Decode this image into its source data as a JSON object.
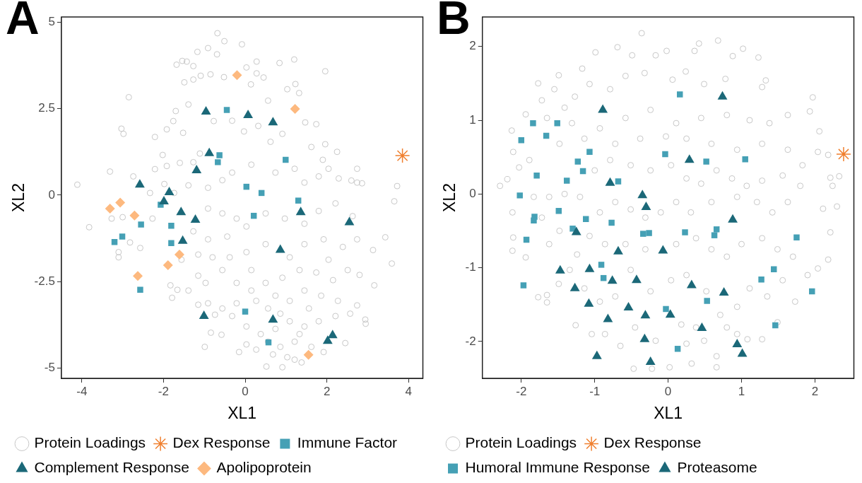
{
  "chart_data": [
    {
      "type": "scatter",
      "title": "A",
      "xlabel": "XL1",
      "ylabel": "XL2",
      "xlim": [
        -4.5,
        4.35
      ],
      "ylim": [
        -5.3,
        5.15
      ],
      "xticks": [
        -4,
        -2,
        0,
        2,
        4
      ],
      "yticks": [
        -5,
        -2.5,
        0,
        2.5,
        5
      ],
      "grid": false,
      "legend": "bottom",
      "series": [
        {
          "name": "Protein Loadings",
          "color": "#c8c8c8",
          "marker": "circle",
          "x": [
            -4.11,
            -3.82,
            -2.85,
            -3.03,
            -2.98,
            -3.31,
            -2.74,
            -0.68,
            -0.51,
            -0.08,
            1.96,
            1.2,
            3.72,
            3.65,
            3.59,
            3.43,
            3.16,
            2.95,
            2.94,
            2.74,
            3.13,
            2.74,
            2.86,
            2.29,
            2.74,
            2.25,
            1.96,
            2.6,
            0.52,
            -0.99,
            -0.84,
            -0.58,
            -0.15,
            1.38,
            2.45,
            -1.17,
            -0.91,
            -0.69,
            -1.54,
            -1.68,
            -1.43,
            -1.27,
            -1.49,
            -1.27,
            -1.09,
            -0.85,
            -0.52,
            0.03,
            0.28,
            0.84,
            1.03,
            1.23,
            1.32,
            0.56,
            0.28,
            0.45,
            0.14,
            -1.7,
            -1.76,
            -1.39,
            -1.92,
            -2.21,
            -1.52,
            -2.02,
            -2.21,
            -1.92,
            -1.6,
            -1.27,
            -1.11,
            -0.77,
            -0.32,
            -0.03,
            0.32,
            0.62,
            0.91,
            1.47,
            1.74,
            1.62,
            1.9,
            2.04,
            1.8,
            1.45,
            1.21,
            0.74,
            0.15,
            -0.32,
            -0.56,
            -0.91,
            -1.39,
            -1.74,
            -2.33,
            -1.98,
            -0.56,
            -0.21,
            -0.91,
            -1.27,
            -0.91,
            -0.44,
            0.03,
            0.5,
            0.97,
            1.45,
            1.8,
            2.21,
            2.63,
            2.74,
            2.39,
            1.92,
            1.45,
            1.09,
            0.5,
            0.03,
            -0.38,
            -0.8,
            -1.15,
            -1.56,
            -1.39,
            -0.97,
            -0.56,
            -0.21,
            0.15,
            0.5,
            0.91,
            1.33,
            1.74,
            2.15,
            2.51,
            2.8,
            2.27,
            1.86,
            1.45,
            1.09,
            0.74,
            0.27,
            -0.21,
            -0.56,
            -0.91,
            -1.15,
            -0.74,
            -0.32,
            0.03,
            0.38,
            0.74,
            1.09,
            1.45,
            1.8,
            2.21,
            2.57,
            0.86,
            1.21,
            1.03,
            0.68,
            0.27,
            0.03,
            1.62,
            1.92,
            0.91,
            1.21,
            0.56,
            1.33,
            0.86,
            1.56,
            0.56,
            0.15,
            2.04,
            -2.57,
            -3.1,
            -2.82,
            -3.1,
            -3.27,
            -3.0,
            -2.27,
            -1.79,
            -1.66,
            -1.83,
            -1.15
          ],
          "values": [
            0.3,
            -0.93,
            2.83,
            1.92,
            1.77,
            0.68,
            0.54,
            4.68,
            4.45,
            4.36,
            3.58,
            3.92,
            0.26,
            -0.18,
            -1.98,
            -1.22,
            -2.61,
            -3.72,
            -3.6,
            -3.19,
            -1.59,
            0.36,
            0.34,
            0.48,
            0.76,
            1.25,
            1.47,
            0.42,
            -4.96,
            -4.39,
            -3.98,
            -4.04,
            -4.54,
            -4.84,
            -4.28,
            4.14,
            4.25,
            4.07,
            3.88,
            3.77,
            3.86,
            3.73,
            3.26,
            3.34,
            3.45,
            3.49,
            3.41,
            3.69,
            3.86,
            3.82,
            3.06,
            3.21,
            2.95,
            2.73,
            3.52,
            3.4,
            3.2,
            2.43,
            2.14,
            2.62,
            1.9,
            1.68,
            1.8,
            1.16,
            0.75,
            0.84,
            0.93,
            0.95,
            1.2,
            2.14,
            2.15,
            1.84,
            2.0,
            1.54,
            1.77,
            2.1,
            2.05,
            1.39,
            1.02,
            0.76,
            0.54,
            0.36,
            0.76,
            0.65,
            0.88,
            0.65,
            0.43,
            0.21,
            0.28,
            0.06,
            0.06,
            0.32,
            -0.53,
            -0.68,
            -0.39,
            -1.05,
            -1.28,
            -1.2,
            -0.91,
            -0.53,
            -0.68,
            -0.83,
            -0.46,
            -0.24,
            -0.61,
            -1.28,
            -1.5,
            -1.28,
            -1.42,
            -1.8,
            -1.42,
            -1.65,
            -1.8,
            -1.8,
            -1.72,
            -1.87,
            -2.76,
            -2.54,
            -2.17,
            -2.54,
            -2.17,
            -2.54,
            -2.39,
            -2.17,
            -2.24,
            -2.46,
            -2.17,
            -2.31,
            -3.06,
            -2.91,
            -2.76,
            -3.06,
            -2.91,
            -3.06,
            -3.13,
            -3.28,
            -3.13,
            -3.17,
            -3.46,
            -3.5,
            -3.8,
            -4.02,
            -3.87,
            -3.65,
            -3.8,
            -3.65,
            -3.5,
            -3.43,
            -4.39,
            -4.24,
            -4.69,
            -4.61,
            -4.47,
            -4.32,
            -4.39,
            -4.54,
            -4.98,
            -4.76,
            -4.24,
            -4.02,
            -3.43,
            -3.28,
            -3.28,
            -2.76,
            -1.87,
            -1.53,
            -1.8,
            -1.37,
            -1.65,
            -0.68,
            -0.64,
            -0.68,
            -2.97,
            -2.74,
            -2.61,
            -2.33
          ]
        },
        {
          "name": "Dex Response",
          "color": "#f07f2e",
          "marker": "cross",
          "x": [
            3.85
          ],
          "values": [
            1.14
          ]
        },
        {
          "name": "Immune Factor",
          "color": "#45a0b5",
          "marker": "square",
          "x": [
            -0.45,
            -0.63,
            -0.67,
            0.99,
            0.03,
            0.4,
            0.21,
            1.3,
            -2.07,
            -2.55,
            -1.81,
            -1.81,
            -3.01,
            -3.2,
            -2.57,
            0.0,
            0.57
          ],
          "values": [
            2.46,
            1.15,
            0.95,
            1.02,
            0.24,
            0.06,
            -0.6,
            -0.16,
            -0.28,
            -0.85,
            -0.89,
            -1.39,
            -1.2,
            -1.36,
            -2.74,
            -3.37,
            -4.26
          ]
        },
        {
          "name": "Complement Response",
          "color": "#1b6878",
          "marker": "triangle",
          "x": [
            -0.96,
            0.07,
            0.68,
            -0.88,
            -1.19,
            -2.58,
            -1.86,
            -1.99,
            -1.57,
            -1.22,
            -1.53,
            1.36,
            2.55,
            0.86,
            -1.01,
            0.68,
            2.14,
            2.02
          ],
          "values": [
            2.41,
            2.31,
            2.1,
            1.21,
            0.71,
            0.3,
            0.08,
            -0.19,
            -0.5,
            -0.72,
            -1.33,
            -0.5,
            -0.79,
            -1.59,
            -3.5,
            -3.61,
            -4.06,
            -4.22
          ]
        },
        {
          "name": "Apolipoprotein",
          "color": "#fdb97f",
          "marker": "diamond",
          "x": [
            -0.2,
            1.22,
            -3.31,
            -3.06,
            -2.71,
            -1.61,
            -1.89,
            -2.63,
            1.55
          ],
          "values": [
            3.47,
            2.49,
            -0.39,
            -0.22,
            -0.59,
            -1.72,
            -2.03,
            -2.34,
            -4.62
          ]
        }
      ]
    },
    {
      "type": "scatter",
      "title": "B",
      "xlabel": "XL1",
      "ylabel": "XL2",
      "xlim": [
        -2.53,
        2.53
      ],
      "ylim": [
        -2.5,
        2.4
      ],
      "xticks": [
        -2,
        -1,
        0,
        1,
        2
      ],
      "yticks": [
        -2,
        -1,
        0,
        1,
        2
      ],
      "grid": false,
      "legend": "bottom",
      "series": [
        {
          "name": "Protein Loadings",
          "color": "#c8c8c8",
          "marker": "circle",
          "x": [
            -2.29,
            -2.19,
            -2.13,
            -2.11,
            -2.03,
            -2.12,
            -2.11,
            -2.12,
            -1.94,
            -1.94,
            -1.77,
            -1.72,
            -1.55,
            -1.49,
            -1.17,
            -0.99,
            -0.69,
            -0.36,
            -0.49,
            -0.17,
            -0.02,
            0.24,
            0.36,
            0.42,
            0.68,
            0.88,
            1.02,
            1.23,
            1.33,
            1.28,
            0.78,
            0.49,
            0.06,
            -0.32,
            -0.58,
            -0.79,
            -1.07,
            -1.27,
            -1.41,
            -1.65,
            -1.31,
            -0.93,
            -0.58,
            -0.24,
            0.11,
            0.45,
            0.8,
            1.11,
            1.38,
            1.63,
            1.97,
            1.93,
            2.06,
            2.04,
            2.18,
            2.33,
            2.21,
            2.24,
            2.3,
            2.11,
            2.21,
            2.18,
            2.04,
            1.9,
            1.73,
            1.49,
            1.28,
            1.08,
            0.94,
            0.66,
            0.66,
            0.49,
            0.32,
            0.02,
            -0.22,
            -0.47,
            -0.65,
            -0.86,
            -1.04,
            -1.26,
            -1.65,
            -1.77,
            -1.49,
            -1.65,
            -1.72,
            -1.48,
            -1.62,
            -1.41,
            -1.2,
            -1.0,
            -0.79,
            -0.51,
            -0.24,
            0.04,
            0.25,
            0.45,
            0.66,
            0.87,
            1.07,
            1.28,
            1.56,
            1.8,
            1.63,
            1.42,
            1.21,
            0.94,
            0.59,
            0.31,
            0.11,
            -0.1,
            -0.31,
            -0.51,
            -0.72,
            -0.93,
            -1.07,
            -0.86,
            -0.58,
            -0.31,
            0.11,
            0.38,
            0.59,
            0.8,
            1.0,
            1.28,
            1.49,
            1.7,
            1.56,
            1.35,
            1.11,
            0.94,
            0.71,
            0.52,
            0.25,
            0.04,
            -0.24,
            -0.51,
            -0.72,
            -0.93,
            -1.14,
            -1.34,
            -1.24,
            -1.62,
            -1.83,
            -1.89,
            -1.48,
            -1.14,
            -0.72,
            -0.38,
            -0.03,
            0.25,
            0.59,
            0.94,
            1.28,
            1.63,
            1.83,
            0.18,
            0.38,
            0.8,
            -0.45,
            -0.17,
            0.25
          ],
          "values": [
            0.11,
            0.2,
            0.86,
            0.57,
            0.36,
            -0.25,
            -0.59,
            -0.77,
            -0.86,
            1.08,
            1.5,
            1.27,
            1.42,
            1.61,
            1.7,
            1.92,
            1.99,
            2.18,
            1.88,
            1.88,
            1.94,
            1.66,
            1.94,
            2.04,
            2.08,
            1.87,
            1.97,
            1.85,
            1.54,
            1.45,
            1.56,
            1.49,
            1.55,
            1.64,
            1.6,
            1.42,
            1.49,
            1.32,
            1.17,
            1.03,
            0.96,
            0.89,
            1.03,
            1.14,
            0.96,
            1.03,
            1.07,
            1.0,
            0.96,
            1.07,
            1.31,
            1.12,
            0.85,
            0.57,
            0.53,
            0.24,
            0.22,
            0.11,
            -0.17,
            -0.2,
            -0.52,
            -0.89,
            -1.01,
            -1.1,
            -1.46,
            -1.74,
            -1.97,
            -1.97,
            -1.9,
            -2.2,
            -2.35,
            -1.99,
            -2.3,
            -2.35,
            -2.37,
            -2.37,
            -2.06,
            -1.9,
            -1.9,
            -1.78,
            -1.37,
            -1.4,
            -1.22,
            -1.47,
            -0.32,
            -0.5,
            -0.04,
            0.0,
            -0.04,
            0.32,
            0.46,
            0.39,
            0.32,
            0.39,
            0.21,
            0.14,
            0.32,
            0.21,
            0.11,
            0.18,
            0.25,
            0.11,
            -0.11,
            -0.25,
            -0.11,
            -0.04,
            -0.11,
            -0.25,
            -0.11,
            -0.25,
            -0.32,
            -0.21,
            -0.11,
            -0.25,
            -0.57,
            -0.68,
            -0.68,
            -0.75,
            -0.68,
            -0.6,
            -0.75,
            -0.85,
            -0.68,
            -0.6,
            -0.75,
            -0.85,
            -1.17,
            -1.39,
            -1.28,
            -1.53,
            -1.64,
            -1.32,
            -1.1,
            -1.17,
            -1.32,
            -1.03,
            -1.39,
            -1.46,
            -1.28,
            -1.03,
            -0.82,
            -0.68,
            -0.04,
            0.46,
            0.68,
            0.75,
            0.68,
            0.75,
            0.78,
            0.75,
            0.68,
            0.6,
            0.68,
            0.6,
            0.39,
            -1.77,
            -1.81,
            -1.81,
            -1.81,
            -1.99,
            -2.03
          ]
        },
        {
          "name": "Dex Response",
          "color": "#f07f2e",
          "marker": "cross",
          "x": [
            2.39
          ],
          "values": [
            0.54
          ]
        },
        {
          "name": "Humoral Immune Response",
          "color": "#45a0b5",
          "marker": "square",
          "x": [
            0.16,
            -1.84,
            -1.51,
            -1.66,
            -2.0,
            -1.07,
            -0.04,
            0.52,
            1.05,
            -1.23,
            -1.16,
            -1.79,
            -1.38,
            -0.68,
            -2.02,
            -1.49,
            -1.82,
            -1.83,
            -1.12,
            -0.77,
            -1.3,
            -0.34,
            -0.26,
            0.23,
            0.66,
            0.63,
            1.75,
            -1.93,
            -0.91,
            -0.88,
            -1.97,
            1.44,
            1.27,
            1.96,
            0.53,
            -0.03,
            1.46,
            0.13
          ],
          "values": [
            1.35,
            0.96,
            0.96,
            0.79,
            0.73,
            0.57,
            0.54,
            0.44,
            0.47,
            0.44,
            0.31,
            0.25,
            0.18,
            0.17,
            -0.02,
            -0.23,
            -0.31,
            -0.36,
            -0.34,
            -0.39,
            -0.47,
            -0.54,
            -0.53,
            -0.52,
            -0.48,
            -0.56,
            -0.59,
            -0.62,
            -0.96,
            -1.14,
            -1.24,
            -1.02,
            -1.16,
            -1.32,
            -1.45,
            -1.56,
            -1.78,
            -2.1
          ]
        },
        {
          "name": "Proteasome",
          "color": "#1b6878",
          "marker": "triangle",
          "x": [
            0.74,
            -0.89,
            0.29,
            -0.79,
            -0.35,
            -0.3,
            0.88,
            -1.25,
            -0.68,
            -0.07,
            -1.47,
            -1.07,
            -0.76,
            -0.43,
            0.32,
            -1.27,
            0.76,
            -1.08,
            -0.54,
            -0.31,
            0.03,
            -0.82,
            0.46,
            -0.32,
            0.94,
            1.01,
            -0.97,
            -0.24
          ],
          "values": [
            1.32,
            1.14,
            0.46,
            0.15,
            -0.02,
            -0.18,
            -0.35,
            -0.52,
            -0.78,
            -0.77,
            -1.04,
            -1.02,
            -1.18,
            -1.17,
            -1.24,
            -1.28,
            -1.34,
            -1.49,
            -1.54,
            -1.65,
            -1.64,
            -1.7,
            -1.82,
            -1.97,
            -2.04,
            -2.17,
            -2.2,
            -2.28
          ]
        }
      ]
    }
  ]
}
